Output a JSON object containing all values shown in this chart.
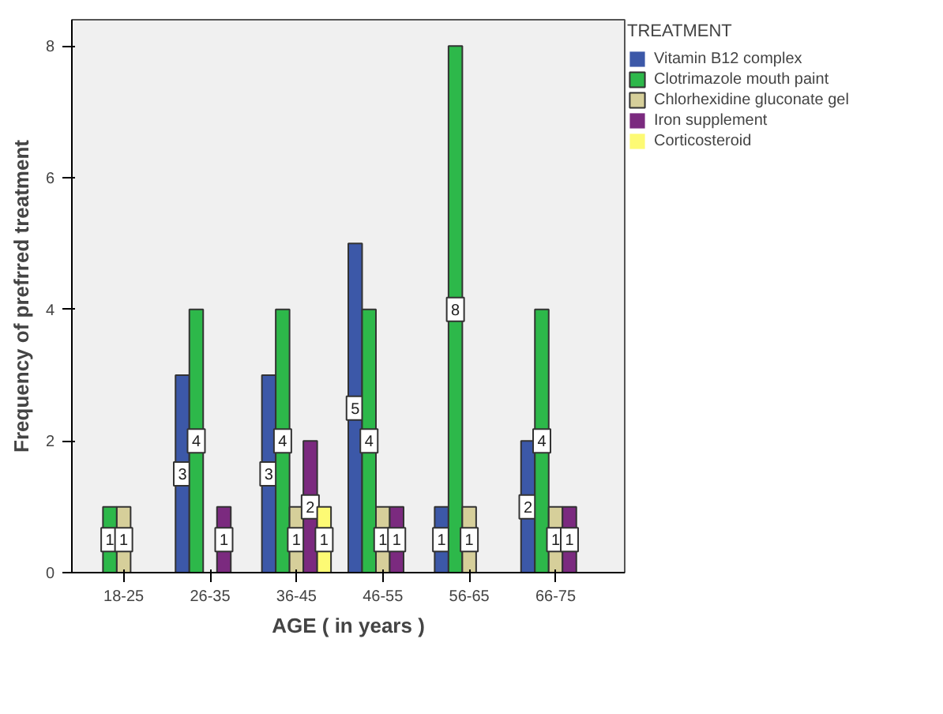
{
  "chart_data": {
    "type": "bar",
    "xlabel": "AGE ( in years )",
    "ylabel": "Frequency of prefrred treatment",
    "legend_title": "TREATMENT",
    "categories": [
      "18-25",
      "26-35",
      "36-45",
      "46-55",
      "56-65",
      "66-75"
    ],
    "series": [
      {
        "name": "Vitamin B12 complex",
        "color": "#3c58a8",
        "values": [
          0,
          3,
          3,
          5,
          1,
          2
        ],
        "value_labels": [
          null,
          "3",
          "3",
          "5",
          "1",
          "2"
        ]
      },
      {
        "name": "Clotrimazole mouth paint",
        "color": "#2db84a",
        "values": [
          1,
          4,
          4,
          4,
          8,
          4
        ],
        "value_labels": [
          "1",
          "4",
          "4",
          "4",
          "8",
          "4"
        ]
      },
      {
        "name": "Chlorhexidine gluconate gel",
        "color": "#d6cf9a",
        "values": [
          1,
          0,
          1,
          1,
          1,
          1
        ],
        "value_labels": [
          "1",
          null,
          "1",
          "1",
          "1",
          "1"
        ]
      },
      {
        "name": "Iron supplement",
        "color": "#7b2a7f",
        "values": [
          0,
          1,
          2,
          1,
          0,
          1
        ],
        "value_labels": [
          null,
          "1",
          "2",
          "1",
          null,
          "1"
        ]
      },
      {
        "name": "Corticosteroid",
        "color": "#fdfa74",
        "values": [
          0,
          0,
          1,
          0,
          0,
          0
        ],
        "value_labels": [
          null,
          null,
          "1",
          null,
          null,
          null
        ]
      }
    ],
    "ylim": [
      0,
      8.4
    ],
    "yticks": [
      0,
      2,
      4,
      6,
      8
    ],
    "grid": false,
    "legend": "right"
  }
}
